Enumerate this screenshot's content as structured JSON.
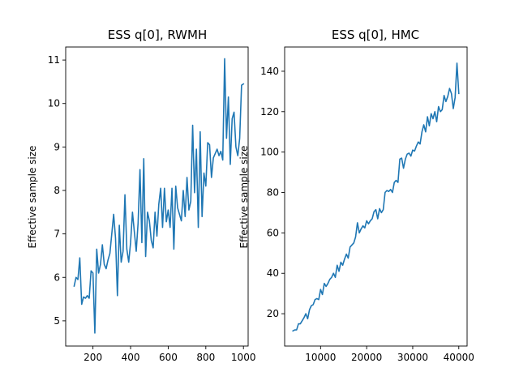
{
  "chart_data": [
    {
      "type": "line",
      "title": "ESS q[0], RWMH",
      "xlabel": "",
      "ylabel": "Effective sample size",
      "xlim": [
        55,
        1025
      ],
      "ylim": [
        4.42,
        11.3
      ],
      "xticks": [
        200,
        400,
        600,
        800,
        1000
      ],
      "xtick_labels": [
        "200",
        "400",
        "600",
        "800",
        "1000"
      ],
      "yticks": [
        5,
        6,
        7,
        8,
        9,
        10,
        11
      ],
      "ytick_labels": [
        "5",
        "6",
        "7",
        "8",
        "9",
        "10",
        "11"
      ],
      "color": "#1f77b4",
      "series": [
        {
          "x": [
            100,
            110,
            120,
            130,
            140,
            150,
            160,
            170,
            180,
            190,
            200,
            210,
            220,
            230,
            240,
            250,
            260,
            270,
            280,
            290,
            300,
            310,
            320,
            330,
            340,
            350,
            360,
            370,
            380,
            390,
            400,
            410,
            420,
            430,
            440,
            450,
            460,
            470,
            480,
            490,
            500,
            510,
            520,
            530,
            540,
            550,
            560,
            570,
            580,
            590,
            600,
            610,
            620,
            630,
            640,
            650,
            660,
            670,
            680,
            690,
            700,
            710,
            720,
            730,
            740,
            750,
            760,
            770,
            780,
            790,
            800,
            810,
            820,
            830,
            840,
            850,
            860,
            870,
            880,
            890,
            900,
            910,
            920,
            930,
            940,
            950,
            960,
            970,
            980,
            990,
            1000
          ],
          "y": [
            5.8,
            6.0,
            5.95,
            6.45,
            5.38,
            5.55,
            5.52,
            5.58,
            5.52,
            6.15,
            6.1,
            4.72,
            6.65,
            6.1,
            6.3,
            6.75,
            6.3,
            6.2,
            6.4,
            6.55,
            7.0,
            7.45,
            6.9,
            5.58,
            7.2,
            6.35,
            6.6,
            7.9,
            6.65,
            6.35,
            6.8,
            7.5,
            7.05,
            6.6,
            7.25,
            8.48,
            6.8,
            8.73,
            6.48,
            7.5,
            7.3,
            6.85,
            6.68,
            7.5,
            6.95,
            7.68,
            8.05,
            7.15,
            8.05,
            7.28,
            7.55,
            7.15,
            8.05,
            6.65,
            8.1,
            7.6,
            7.45,
            7.3,
            8.0,
            7.4,
            8.3,
            7.55,
            7.75,
            9.5,
            7.95,
            8.95,
            7.15,
            9.35,
            7.4,
            8.4,
            8.1,
            9.1,
            9.05,
            8.3,
            8.75,
            8.85,
            8.95,
            8.8,
            8.9,
            8.7,
            11.03,
            9.2,
            10.15,
            8.6,
            9.65,
            9.8,
            9.0,
            8.8,
            9.2,
            10.42,
            10.45
          ]
        }
      ]
    },
    {
      "type": "line",
      "title": "ESS q[0], HMC",
      "xlabel": "",
      "ylabel": "Effective sample size",
      "xlim": [
        2200,
        41800
      ],
      "ylim": [
        4.0,
        152.0
      ],
      "xticks": [
        10000,
        20000,
        30000,
        40000
      ],
      "xtick_labels": [
        "10000",
        "20000",
        "30000",
        "40000"
      ],
      "yticks": [
        20,
        40,
        60,
        80,
        100,
        120,
        140
      ],
      "ytick_labels": [
        "20",
        "40",
        "60",
        "80",
        "100",
        "120",
        "140"
      ],
      "color": "#1f77b4",
      "series": [
        {
          "x": [
            4000,
            4400,
            4800,
            5200,
            5600,
            6000,
            6400,
            6800,
            7200,
            7600,
            8000,
            8400,
            8800,
            9200,
            9600,
            10000,
            10400,
            10800,
            11200,
            11600,
            12000,
            12400,
            12800,
            13200,
            13600,
            14000,
            14400,
            14800,
            15200,
            15600,
            16000,
            16400,
            16800,
            17200,
            17600,
            18000,
            18400,
            18800,
            19200,
            19600,
            20000,
            20400,
            20800,
            21200,
            21600,
            22000,
            22400,
            22800,
            23200,
            23600,
            24000,
            24400,
            24800,
            25200,
            25600,
            26000,
            26400,
            26800,
            27200,
            27600,
            28000,
            28400,
            28800,
            29200,
            29600,
            30000,
            30400,
            30800,
            31200,
            31600,
            32000,
            32400,
            32800,
            33200,
            33600,
            34000,
            34400,
            34800,
            35200,
            35600,
            36000,
            36400,
            36800,
            37200,
            37600,
            38000,
            38400,
            38800,
            39200,
            39600,
            40000
          ],
          "y": [
            11.5,
            12.0,
            12.0,
            15.0,
            15.0,
            16.5,
            18.0,
            20.0,
            17.5,
            22.0,
            24.0,
            24.5,
            27.0,
            27.5,
            27.0,
            32.0,
            29.5,
            35.0,
            33.5,
            35.0,
            37.0,
            38.0,
            40.0,
            38.0,
            44.0,
            41.0,
            45.5,
            44.0,
            47.0,
            49.5,
            47.5,
            53.0,
            54.0,
            55.0,
            58.0,
            65.0,
            60.0,
            62.0,
            63.5,
            62.5,
            66.0,
            64.5,
            66.0,
            67.0,
            70.5,
            71.5,
            67.0,
            72.0,
            70.0,
            71.5,
            80.0,
            81.0,
            80.5,
            81.5,
            80.0,
            85.0,
            86.0,
            85.0,
            96.5,
            97.0,
            92.0,
            96.5,
            99.0,
            99.5,
            98.0,
            101.0,
            100.5,
            103.0,
            105.0,
            104.0,
            110.0,
            113.5,
            110.0,
            117.5,
            113.0,
            119.0,
            116.5,
            120.0,
            115.0,
            122.5,
            120.0,
            121.0,
            128.0,
            125.0,
            127.5,
            131.5,
            129.0,
            121.5,
            127.0,
            144.0,
            129.0
          ]
        }
      ]
    }
  ]
}
